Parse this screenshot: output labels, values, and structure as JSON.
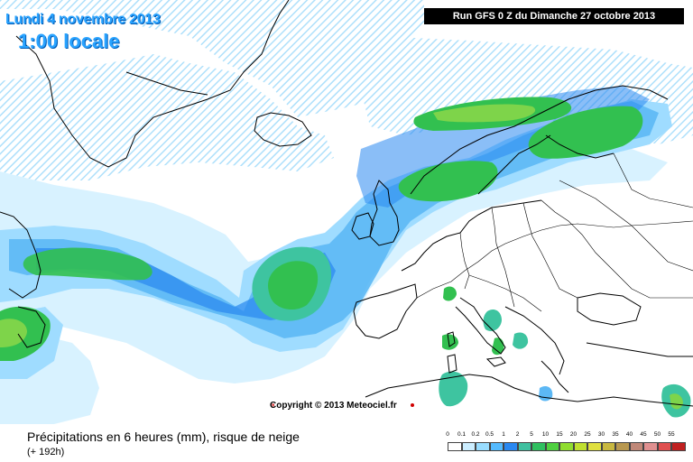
{
  "header": {
    "date_label": "Lundi 4 novembre 2013",
    "time_label": "1:00 locale",
    "run_label": "Run GFS 0 Z du Dimanche 27 octobre 2013"
  },
  "copyright": "Copyright © 2013 Meteociel.fr",
  "footer": {
    "title": "Précipitations en 6 heures (mm), risque de neige",
    "subtitle": "(+ 192h)"
  },
  "legend": {
    "labels": [
      "0",
      "0.1",
      "0.2",
      "0.5",
      "1",
      "2",
      "5",
      "10",
      "15",
      "20",
      "25",
      "30",
      "35",
      "40",
      "45",
      "50",
      "55"
    ],
    "colors": [
      "#ffffff",
      "#cceeff",
      "#99ddff",
      "#55bbff",
      "#2a88f0",
      "#40c0a0",
      "#30c060",
      "#50d040",
      "#90dd30",
      "#c0e030",
      "#e0e040",
      "#c8b840",
      "#b89850",
      "#c08878",
      "#e09090",
      "#e05050",
      "#c02020"
    ]
  },
  "map_colors": {
    "sea": "#ffffff",
    "coast": "#000000",
    "light_cyan": "#d8f2ff",
    "cyan": "#9fdcff",
    "mid_blue": "#5cb8f5",
    "blue": "#2a88f0",
    "teal": "#3ec4a0",
    "green": "#32c050",
    "light_green": "#7ed44a"
  }
}
